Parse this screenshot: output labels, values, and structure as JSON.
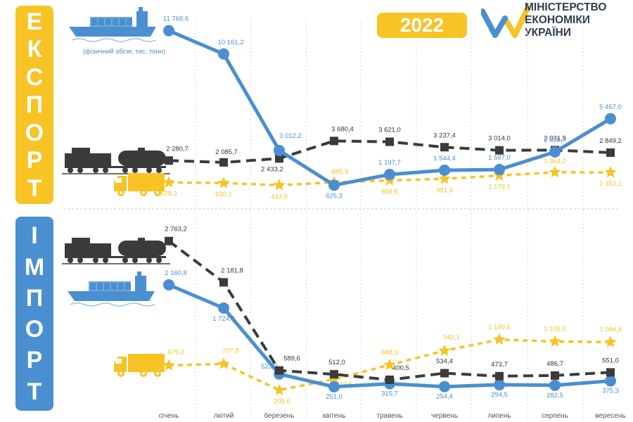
{
  "export_label": [
    "Е",
    "К",
    "С",
    "П",
    "О",
    "Р",
    "Т"
  ],
  "import_label": [
    "І",
    "М",
    "П",
    "О",
    "Р",
    "Т"
  ],
  "year": "2022",
  "ministry": {
    "line1": "МІНІСТЕРСТВО",
    "line2": "ЕКОНОМІКИ",
    "line3": "УКРАЇНИ"
  },
  "unit_note": "(фізичний обсяг, тис. тонн)",
  "colors": {
    "sea": "#4a8fd0",
    "rail": "#3b3b3b",
    "road": "#f7c325",
    "grid": "#d6d6d6"
  },
  "icons": {
    "sea": "cargo-ship-icon",
    "rail": "freight-train-icon",
    "road": "cargo-truck-icon"
  },
  "chart_data": [
    {
      "type": "line",
      "categories": [
        "січень",
        "лютий",
        "березень",
        "квітень",
        "травень",
        "червень",
        "липень",
        "серпень",
        "вересень"
      ],
      "series": [
        {
          "key": "sea",
          "values": [
            11768.6,
            10161.2,
            3012.2,
            625.3,
            1197.7,
            1544.4,
            1597.0,
            2898.7,
            5457.0
          ],
          "labels": [
            "11 768,6",
            "10 161,2",
            "3 012,2",
            "625,3",
            "1 197,7",
            "1 544,4",
            "1 597,0",
            "2 898,7",
            "5 457,0"
          ]
        },
        {
          "key": "rail",
          "values": [
            2280.7,
            2085.7,
            2433.2,
            3680.4,
            3621.0,
            3237.4,
            3014.0,
            3031.9,
            2849.2
          ],
          "labels": [
            "2 280,7",
            "2 085,7",
            "2 433,2",
            "3 680,4",
            "3 621,0",
            "3 237,4",
            "3 014,0",
            "3 031,9",
            "2 849,2"
          ]
        },
        {
          "key": "road",
          "values": [
            678.2,
            630.1,
            443.9,
            689.3,
            858.5,
            981.4,
            1179.1,
            1364.2,
            1352.1
          ],
          "labels": [
            "678,2",
            "630,1",
            "443,9",
            "689,3",
            "858,5",
            "981,4",
            "1 179,1",
            "1 364,2",
            "1 352,1"
          ]
        }
      ]
    },
    {
      "type": "line",
      "categories": [
        "січень",
        "лютий",
        "березень",
        "квітень",
        "травень",
        "червень",
        "липень",
        "серпень",
        "вересень"
      ],
      "series": [
        {
          "key": "rail",
          "values": [
            2763.2,
            2181.8,
            589.6,
            512.0,
            400.5,
            534.4,
            473.7,
            486.7,
            551.0
          ],
          "labels": [
            "2 763,2",
            "2 181,8",
            "589,6",
            "512,0",
            "400,5",
            "534,4",
            "473,7",
            "486,7",
            "551,0"
          ]
        },
        {
          "key": "sea",
          "values": [
            2160.8,
            1724.9,
            523.2,
            251.0,
            315.7,
            254.4,
            294.5,
            282.5,
            375.3
          ],
          "labels": [
            "2 160,8",
            "1 724,9",
            "523,2",
            "251,0",
            "315,7",
            "254,4",
            "294,5",
            "282,5",
            "375,3"
          ]
        },
        {
          "key": "road",
          "values": [
            679.2,
            707.8,
            205.6,
            413.6,
            688.3,
            942.1,
            1140.6,
            1105.5,
            1094.4
          ],
          "labels": [
            "679,2",
            "707,8",
            "205,6",
            "413,6",
            "688,3",
            "942,1",
            "1 140,6",
            "1 105,5",
            "1 094,4"
          ]
        }
      ]
    }
  ]
}
